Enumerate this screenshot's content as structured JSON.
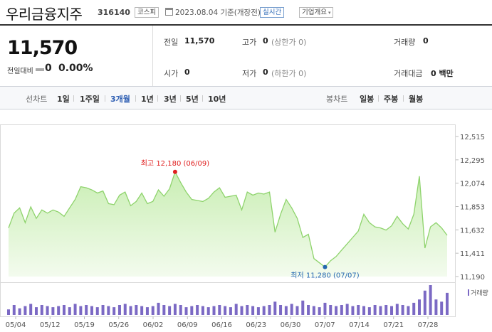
{
  "header": {
    "stock_name": "우리금융지주",
    "stock_code": "316140",
    "market_badge": "코스피",
    "date_text": "2023.08.04  기준(개장전)",
    "live_badge": "실시간",
    "company_badge": "기업개요",
    "company_caret": "▾"
  },
  "price": {
    "current": "11,570",
    "change_label": "전일대비",
    "change_value": "0",
    "change_pct": "0.00%"
  },
  "stats": {
    "prev_label": "전일",
    "prev_value": "11,570",
    "high_label": "고가",
    "high_value": "0",
    "high_sub": "(상한가 0)",
    "volume_label": "거래량",
    "volume_value": "0",
    "open_label": "시가",
    "open_value": "0",
    "low_label": "저가",
    "low_value": "0",
    "low_sub": "(하한가 0)",
    "amount_label": "거래대금",
    "amount_value": "0 백만"
  },
  "tabs": {
    "line_label": "선차트",
    "line_tabs": [
      "1일",
      "1주일",
      "3개월",
      "1년",
      "3년",
      "5년",
      "10년"
    ],
    "active_line_tab": "3개월",
    "candle_label": "봉차트",
    "candle_tabs": [
      "일봉",
      "주봉",
      "월봉"
    ]
  },
  "chart_data": {
    "type": "area",
    "colors": {
      "line": "#8ed36c",
      "fill_top": "#c9eeb3",
      "fill_bottom": "#f3fbee",
      "volume": "#7b69c4",
      "high_marker": "#e02020",
      "low_marker": "#2467b0"
    },
    "y_ticks": [
      "12,515",
      "12,295",
      "12,074",
      "11,853",
      "11,632",
      "11,411",
      "11,190"
    ],
    "ylim": [
      11190,
      12515
    ],
    "x_ticks": [
      "05/04",
      "05/12",
      "05/19",
      "05/26",
      "06/02",
      "06/09",
      "06/16",
      "06/23",
      "06/30",
      "07/07",
      "07/14",
      "07/21",
      "07/28"
    ],
    "high_label": "최고 12,180 (06/09)",
    "low_label": "최저 11,280 (07/07)",
    "high_index": 30,
    "low_index": 57,
    "volume_legend": "거래량",
    "values": [
      11650,
      11790,
      11840,
      11700,
      11850,
      11740,
      11820,
      11790,
      11820,
      11800,
      11760,
      11840,
      11920,
      12040,
      12030,
      12010,
      11980,
      12000,
      11880,
      11870,
      11960,
      11990,
      11860,
      11900,
      11980,
      11880,
      11900,
      12010,
      11950,
      12020,
      12180,
      12080,
      11990,
      11920,
      11910,
      11900,
      11930,
      11990,
      12030,
      11940,
      11950,
      11960,
      11820,
      11990,
      11960,
      11980,
      11970,
      11990,
      11610,
      11780,
      11920,
      11840,
      11740,
      11560,
      11590,
      11360,
      11320,
      11280,
      11340,
      11380,
      11440,
      11500,
      11560,
      11620,
      11780,
      11700,
      11660,
      11650,
      11630,
      11670,
      11760,
      11690,
      11640,
      11780,
      12140,
      11460,
      11660,
      11700,
      11650,
      11580
    ],
    "volumes": [
      5,
      9,
      6,
      8,
      10,
      7,
      9,
      8,
      7,
      8,
      9,
      7,
      10,
      8,
      9,
      8,
      7,
      9,
      8,
      7,
      9,
      10,
      8,
      9,
      8,
      7,
      8,
      11,
      9,
      8,
      10,
      9,
      7,
      8,
      9,
      8,
      7,
      8,
      9,
      8,
      7,
      10,
      8,
      9,
      8,
      7,
      8,
      9,
      12,
      9,
      8,
      10,
      8,
      13,
      9,
      8,
      7,
      11,
      9,
      8,
      9,
      10,
      8,
      9,
      8,
      7,
      9,
      8,
      9,
      8,
      10,
      9,
      8,
      11,
      14,
      22,
      27,
      14,
      12,
      20
    ]
  }
}
